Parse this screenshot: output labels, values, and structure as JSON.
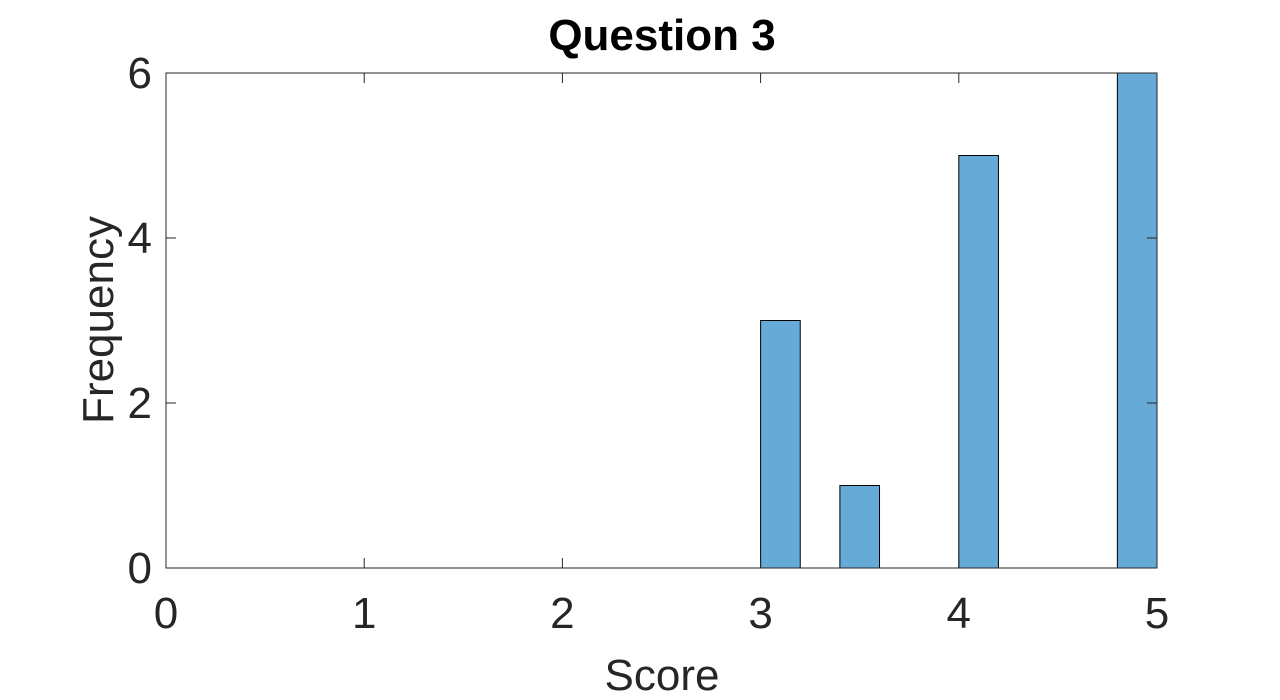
{
  "chart_data": {
    "type": "bar",
    "title": "Question 3",
    "xlabel": "Score",
    "ylabel": "Frequency",
    "xlim": [
      0,
      5
    ],
    "ylim": [
      0,
      6
    ],
    "xticks": [
      0,
      1,
      2,
      3,
      4,
      5
    ],
    "yticks": [
      0,
      2,
      4,
      6
    ],
    "bin_width": 0.2,
    "bars": [
      {
        "x": 3.1,
        "value": 3
      },
      {
        "x": 3.5,
        "value": 1
      },
      {
        "x": 4.1,
        "value": 5
      },
      {
        "x": 4.9,
        "value": 6
      }
    ],
    "bar_color": "#66aad8",
    "grid": false,
    "legend": "none"
  }
}
